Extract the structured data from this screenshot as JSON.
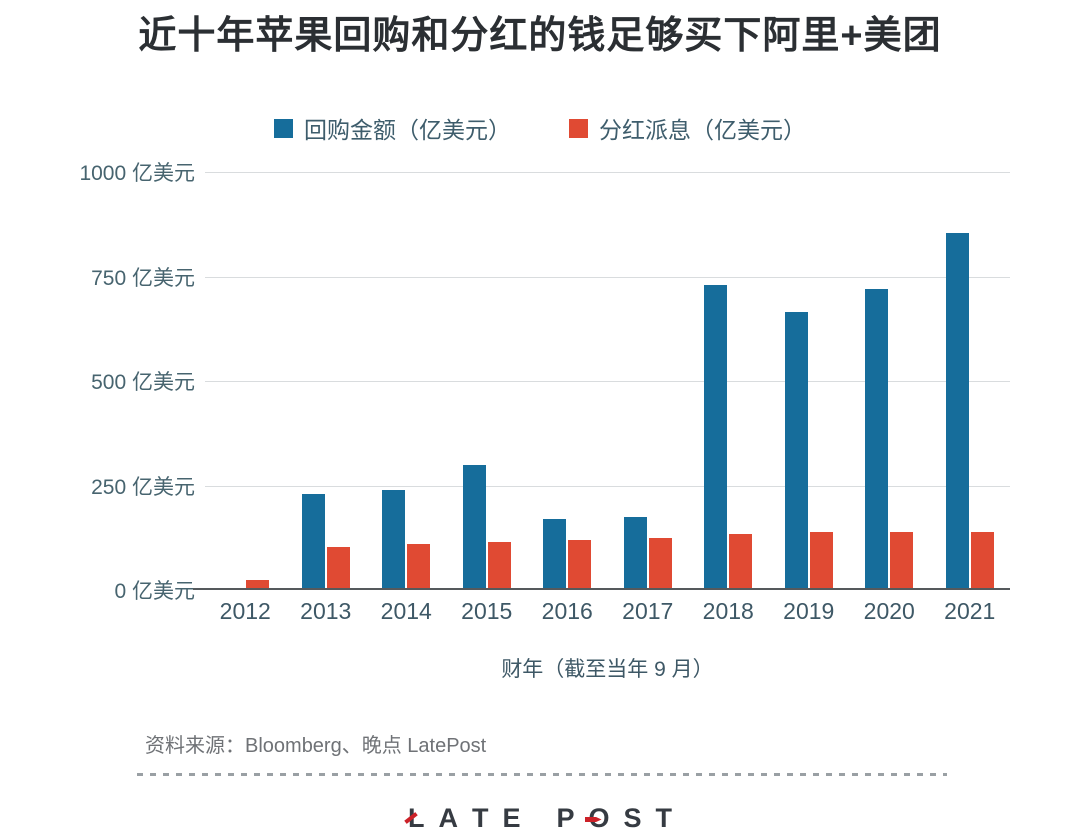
{
  "title": "近十年苹果回购和分红的钱足够买下阿里+美团",
  "legend": [
    {
      "label": "回购金额（亿美元）",
      "color": "#166d9b"
    },
    {
      "label": "分红派息（亿美元）",
      "color": "#e04a33"
    }
  ],
  "chart_data": {
    "type": "bar",
    "title": "近十年苹果回购和分红的钱足够买下阿里+美团",
    "categories": [
      "2012",
      "2013",
      "2014",
      "2015",
      "2016",
      "2017",
      "2018",
      "2019",
      "2020",
      "2021"
    ],
    "series": [
      {
        "name": "回购金额（亿美元）",
        "color": "#166d9b",
        "values": [
          0,
          230,
          240,
          300,
          170,
          175,
          730,
          665,
          720,
          855
        ]
      },
      {
        "name": "分红派息（亿美元）",
        "color": "#e04a33",
        "values": [
          25,
          105,
          110,
          115,
          120,
          125,
          135,
          140,
          140,
          140
        ]
      }
    ],
    "xlabel": "财年（截至当年 9 月）",
    "ylabel": "亿美元",
    "ylim": [
      0,
      1000
    ],
    "yticks": [
      0,
      250,
      500,
      750,
      1000
    ],
    "grid": true,
    "legend_position": "top"
  },
  "y_axis": {
    "tick_labels": [
      "1000 亿美元",
      "750 亿美元",
      "500 亿美元",
      "250 亿美元",
      "0 亿美元"
    ],
    "tick_positions_pct": [
      0,
      25,
      50,
      75,
      100
    ]
  },
  "x_axis": {
    "title": "财年（截至当年 9 月）"
  },
  "footer": {
    "source": "资料来源：Bloomberg、晚点 LatePost"
  },
  "logo": {
    "word1": "LATE",
    "word2": "POST"
  }
}
